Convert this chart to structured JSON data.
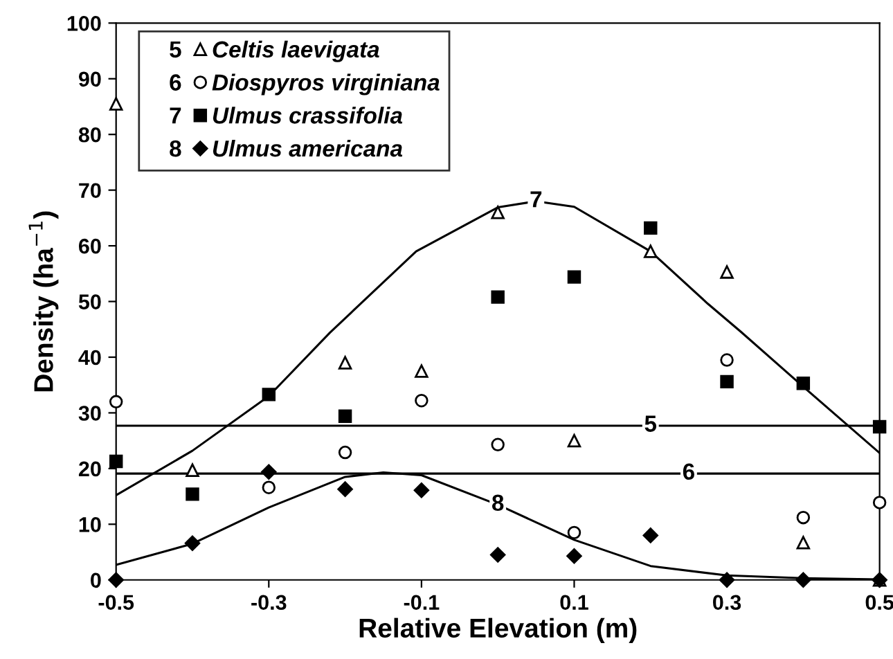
{
  "chart_data": {
    "type": "scatter",
    "xlabel": "Relative Elevation (m)",
    "ylabel": "Density (ha$^{−1}$)",
    "x": [
      -0.5,
      -0.4,
      -0.3,
      -0.2,
      -0.1,
      0,
      0.1,
      0.2,
      0.3,
      0.4,
      0.5
    ],
    "xlim": [
      -0.5,
      0.5
    ],
    "xticks": [
      -0.5,
      -0.3,
      -0.1,
      0.1,
      0.3,
      0.5
    ],
    "ylim": [
      0,
      100
    ],
    "yticks": [
      0,
      10,
      20,
      30,
      40,
      50,
      60,
      70,
      80,
      90,
      100
    ],
    "grid": false,
    "legend": "top left",
    "series": [
      {
        "name": "Celtis laevigata",
        "color": "#000000",
        "marker": "triangle",
        "values": [
          85.5,
          19.7,
          null,
          39,
          37.5,
          66,
          25,
          59,
          55.3,
          6.7,
          0
        ]
      },
      {
        "name": "Diospyros virginiana",
        "color": "#000000",
        "marker": "circle",
        "values": [
          32,
          null,
          16.6,
          22.9,
          32.2,
          24.3,
          8.5,
          null,
          39.5,
          11.2,
          13.9
        ]
      },
      {
        "name": "Ulmus crassifolia",
        "color": "#000000",
        "marker": "square",
        "values": [
          21.3,
          15.4,
          33.3,
          29.4,
          null,
          50.8,
          54.4,
          63.2,
          35.6,
          35.3,
          27.5
        ]
      },
      {
        "name": "Ulmus americana",
        "color": "#000000",
        "marker": "diamond",
        "values": [
          0,
          6.6,
          19.4,
          16.3,
          16.1,
          4.5,
          4.3,
          8,
          0,
          0,
          0
        ]
      },
      {
        "name": "5",
        "type": "line",
        "color": "#000000",
        "marker": "none",
        "x": [
          -0.5,
          0.5
        ],
        "values": [
          27.7,
          27.7
        ]
      },
      {
        "name": "6",
        "type": "line",
        "color": "#000000",
        "marker": "none",
        "x": [
          -0.5,
          0.5
        ],
        "values": [
          19.1,
          19.1
        ]
      },
      {
        "name": "7",
        "type": "line",
        "color": "#000000",
        "marker": "none",
        "x": [
          -0.5,
          -0.4,
          -0.3,
          -0.22,
          -0.107,
          0,
          0.05,
          0.1,
          0.2,
          0.275,
          0.318,
          0.4,
          0.5
        ],
        "values": [
          15.2,
          23.2,
          33,
          44.4,
          59,
          66.9,
          68,
          67,
          59,
          49.6,
          44.6,
          34.7,
          22.8
        ]
      },
      {
        "name": "8",
        "type": "line",
        "color": "#000000",
        "marker": "none",
        "x": [
          -0.5,
          -0.4,
          -0.3,
          -0.2,
          -0.15,
          -0.1,
          0,
          0.1,
          0.2,
          0.3,
          0.4,
          0.5
        ],
        "values": [
          2.7,
          6.5,
          13,
          18.5,
          19.3,
          18.8,
          13.5,
          7.2,
          2.5,
          0.8,
          0.3,
          0.1
        ]
      }
    ]
  }
}
